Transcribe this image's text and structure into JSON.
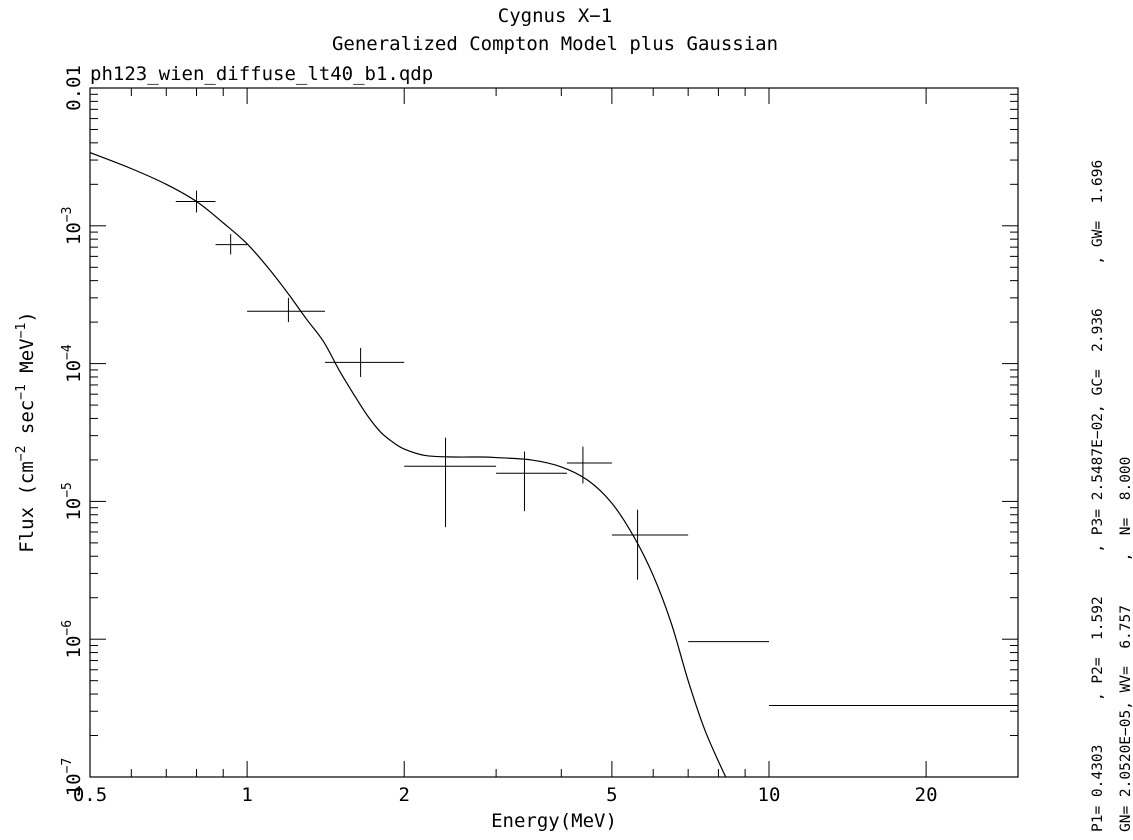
{
  "chart_data": {
    "type": "scatter",
    "title": "Cygnus X−1",
    "subtitle": "Generalized Compton Model plus Gaussian",
    "file_label": "ph123_wien_diffuse_lt40_b1.qdp",
    "xlabel": "Energy(MeV)",
    "ylabel_parts": {
      "pre": "Flux (cm",
      "exp1": "−2",
      "mid": " sec",
      "exp2": "−1",
      "mid2": " MeV",
      "exp3": "−1",
      "post": ")"
    },
    "x_scale": "log",
    "y_scale": "log",
    "xlim": [
      0.5,
      30
    ],
    "ylim": [
      1e-07,
      0.01
    ],
    "grid": false,
    "x_ticks": [
      {
        "value": 0.5,
        "label": "0.5"
      },
      {
        "value": 1,
        "label": "1"
      },
      {
        "value": 2,
        "label": "2"
      },
      {
        "value": 5,
        "label": "5"
      },
      {
        "value": 10,
        "label": "10"
      },
      {
        "value": 20,
        "label": "20"
      }
    ],
    "y_ticks": [
      {
        "value": 1e-07,
        "base": "10",
        "exp": "−7"
      },
      {
        "value": 1e-06,
        "base": "10",
        "exp": "−6"
      },
      {
        "value": 1e-05,
        "base": "10",
        "exp": "−5"
      },
      {
        "value": 0.0001,
        "base": "10",
        "exp": "−4"
      },
      {
        "value": 0.001,
        "base": "10",
        "exp": "−3"
      },
      {
        "value": 0.01,
        "label": "0.01"
      }
    ],
    "data_points": [
      {
        "x": 0.8,
        "x_lo": 0.73,
        "x_hi": 0.87,
        "y": 0.0015,
        "y_lo": 0.00125,
        "y_hi": 0.0018
      },
      {
        "x": 0.93,
        "x_lo": 0.87,
        "x_hi": 1.0,
        "y": 0.00073,
        "y_lo": 0.00062,
        "y_hi": 0.00087
      },
      {
        "x": 1.2,
        "x_lo": 1.0,
        "x_hi": 1.41,
        "y": 0.00024,
        "y_lo": 0.0002,
        "y_hi": 0.0003
      },
      {
        "x": 1.65,
        "x_lo": 1.41,
        "x_hi": 2.0,
        "y": 0.000102,
        "y_lo": 8e-05,
        "y_hi": 0.00013
      },
      {
        "x": 2.4,
        "x_lo": 2.0,
        "x_hi": 3.0,
        "y": 1.8e-05,
        "y_lo": 6.5e-06,
        "y_hi": 2.9e-05
      },
      {
        "x": 3.4,
        "x_lo": 3.0,
        "x_hi": 4.1,
        "y": 1.6e-05,
        "y_lo": 8.5e-06,
        "y_hi": 2.3e-05
      },
      {
        "x": 4.4,
        "x_lo": 4.1,
        "x_hi": 5.0,
        "y": 1.9e-05,
        "y_lo": 1.35e-05,
        "y_hi": 2.5e-05
      },
      {
        "x": 5.6,
        "x_lo": 5.0,
        "x_hi": 7.0,
        "y": 5.7e-06,
        "y_lo": 2.7e-06,
        "y_hi": 8.7e-06
      },
      {
        "x": 8.3,
        "x_lo": 7.0,
        "x_hi": 10.0,
        "y": 9.6e-07,
        "y_lo": null,
        "y_hi": null
      },
      {
        "x": 17.3,
        "x_lo": 10.0,
        "x_hi": 30.0,
        "y": 3.3e-07,
        "y_lo": null,
        "y_hi": null
      }
    ],
    "model_curve": {
      "x": [
        0.5,
        0.6,
        0.7,
        0.8,
        0.9,
        1.0,
        1.1,
        1.2,
        1.3,
        1.4,
        1.5,
        1.6,
        1.7,
        1.8,
        1.9,
        2.0,
        2.2,
        2.5,
        2.8,
        3.0,
        3.5,
        4.0,
        4.5,
        5.0,
        5.5,
        6.0,
        6.5,
        7.0,
        7.5,
        8.0,
        8.5
      ],
      "y": [
        0.0034,
        0.0026,
        0.002,
        0.0015,
        0.00105,
        0.00074,
        0.00049,
        0.00032,
        0.00021,
        0.000145,
        9e-05,
        6e-05,
        4.2e-05,
        3.2e-05,
        2.7e-05,
        2.4e-05,
        2.15e-05,
        2.1e-05,
        2.1e-05,
        2.08e-05,
        2e-05,
        1.78e-05,
        1.42e-05,
        9.7e-06,
        5.6e-06,
        2.9e-06,
        1.3e-06,
        5e-07,
        2.3e-07,
        1.3e-07,
        8e-08
      ]
    },
    "params_line1": "P1= 0.4303     , P2=  1.592     , P3= 2.5487E−02, GC=  2.936     , GW=  1.696",
    "params_line2": "GN= 2.0520E−05, WV=  6.757     ,  N=  8.000"
  }
}
